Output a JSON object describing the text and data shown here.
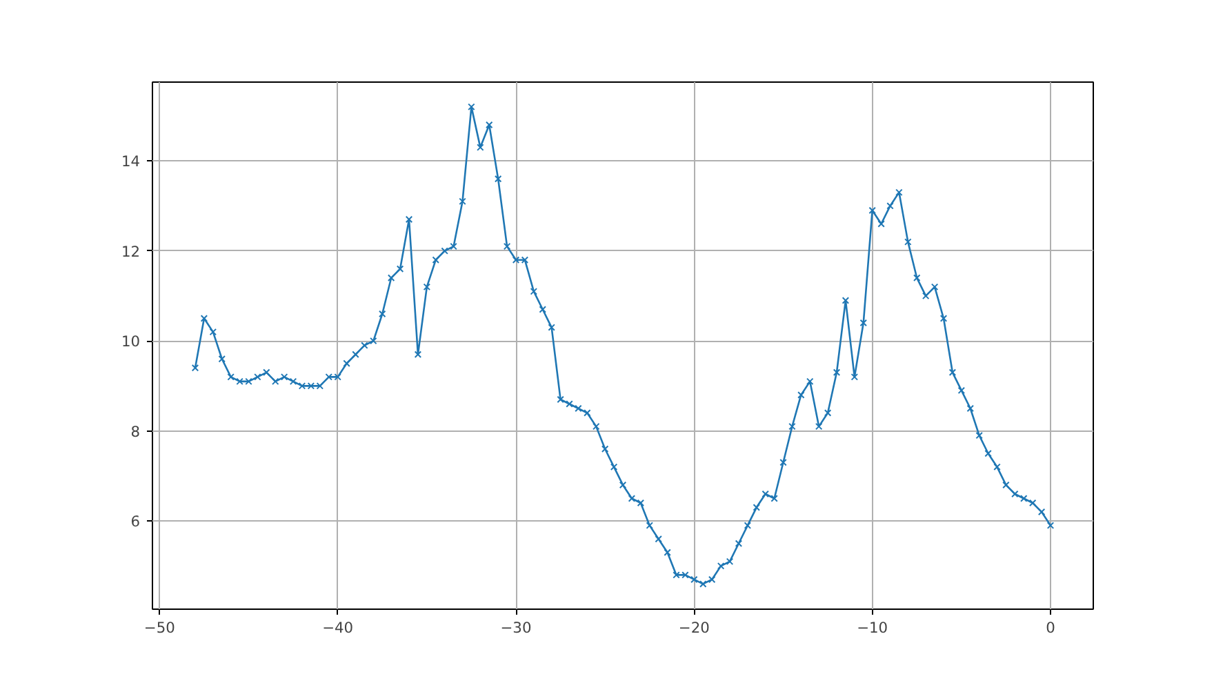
{
  "chart_data": {
    "type": "line",
    "marker": "cross",
    "grid": true,
    "x": [
      -48,
      -47.5,
      -47,
      -46.5,
      -46,
      -45.5,
      -45,
      -44.5,
      -44,
      -43.5,
      -43,
      -42.5,
      -42,
      -41.5,
      -41,
      -40.5,
      -40,
      -39.5,
      -39,
      -38.5,
      -38,
      -37.5,
      -37,
      -36.5,
      -36,
      -35.5,
      -35,
      -34.5,
      -34,
      -33.5,
      -33,
      -32.5,
      -32,
      -31.5,
      -31,
      -30.5,
      -30,
      -29.5,
      -29,
      -28.5,
      -28,
      -27.5,
      -27,
      -26.5,
      -26,
      -25.5,
      -25,
      -24.5,
      -24,
      -23.5,
      -23,
      -22.5,
      -22,
      -21.5,
      -21,
      -20.5,
      -20,
      -19.5,
      -19,
      -18.5,
      -18,
      -17.5,
      -17,
      -16.5,
      -16,
      -15.5,
      -15,
      -14.5,
      -14,
      -13.5,
      -13,
      -12.5,
      -12,
      -11.5,
      -11,
      -10.5,
      -10,
      -9.5,
      -9,
      -8.5,
      -8,
      -7.5,
      -7,
      -6.5,
      -6,
      -5.5,
      -5,
      -4.5,
      -4,
      -3.5,
      -3,
      -2.5,
      -2,
      -1.5,
      -1,
      -0.5,
      0
    ],
    "series": [
      {
        "color": "#1f77b4",
        "values": [
          9.4,
          10.5,
          10.2,
          9.6,
          9.2,
          9.1,
          9.1,
          9.2,
          9.3,
          9.1,
          9.2,
          9.1,
          9.0,
          9.0,
          9.0,
          9.2,
          9.2,
          9.5,
          9.7,
          9.9,
          10.0,
          10.6,
          11.4,
          11.6,
          12.7,
          9.7,
          11.2,
          11.8,
          12.0,
          12.1,
          13.1,
          15.2,
          14.3,
          14.8,
          13.6,
          12.1,
          11.8,
          11.8,
          11.1,
          10.7,
          10.3,
          8.7,
          8.6,
          8.5,
          8.4,
          8.1,
          7.6,
          7.2,
          6.8,
          6.5,
          6.4,
          5.9,
          5.6,
          5.3,
          4.8,
          4.8,
          4.7,
          4.6,
          4.7,
          5.0,
          5.1,
          5.5,
          5.9,
          6.3,
          6.6,
          6.5,
          7.3,
          8.1,
          8.8,
          9.1,
          8.1,
          8.4,
          9.3,
          10.9,
          9.2,
          10.4,
          12.9,
          12.6,
          13.0,
          13.3,
          12.2,
          11.4,
          11.0,
          11.2,
          10.5,
          9.3,
          8.9,
          8.5,
          7.9,
          7.5,
          7.2,
          6.8,
          6.6,
          6.5,
          6.4,
          6.2,
          5.9
        ]
      }
    ],
    "xlim": [
      -50.4,
      2.4
    ],
    "ylim": [
      4.04,
      15.75
    ],
    "xticks": [
      -50,
      -40,
      -30,
      -20,
      -10,
      0
    ],
    "yticks": [
      6,
      8,
      10,
      12,
      14
    ]
  }
}
